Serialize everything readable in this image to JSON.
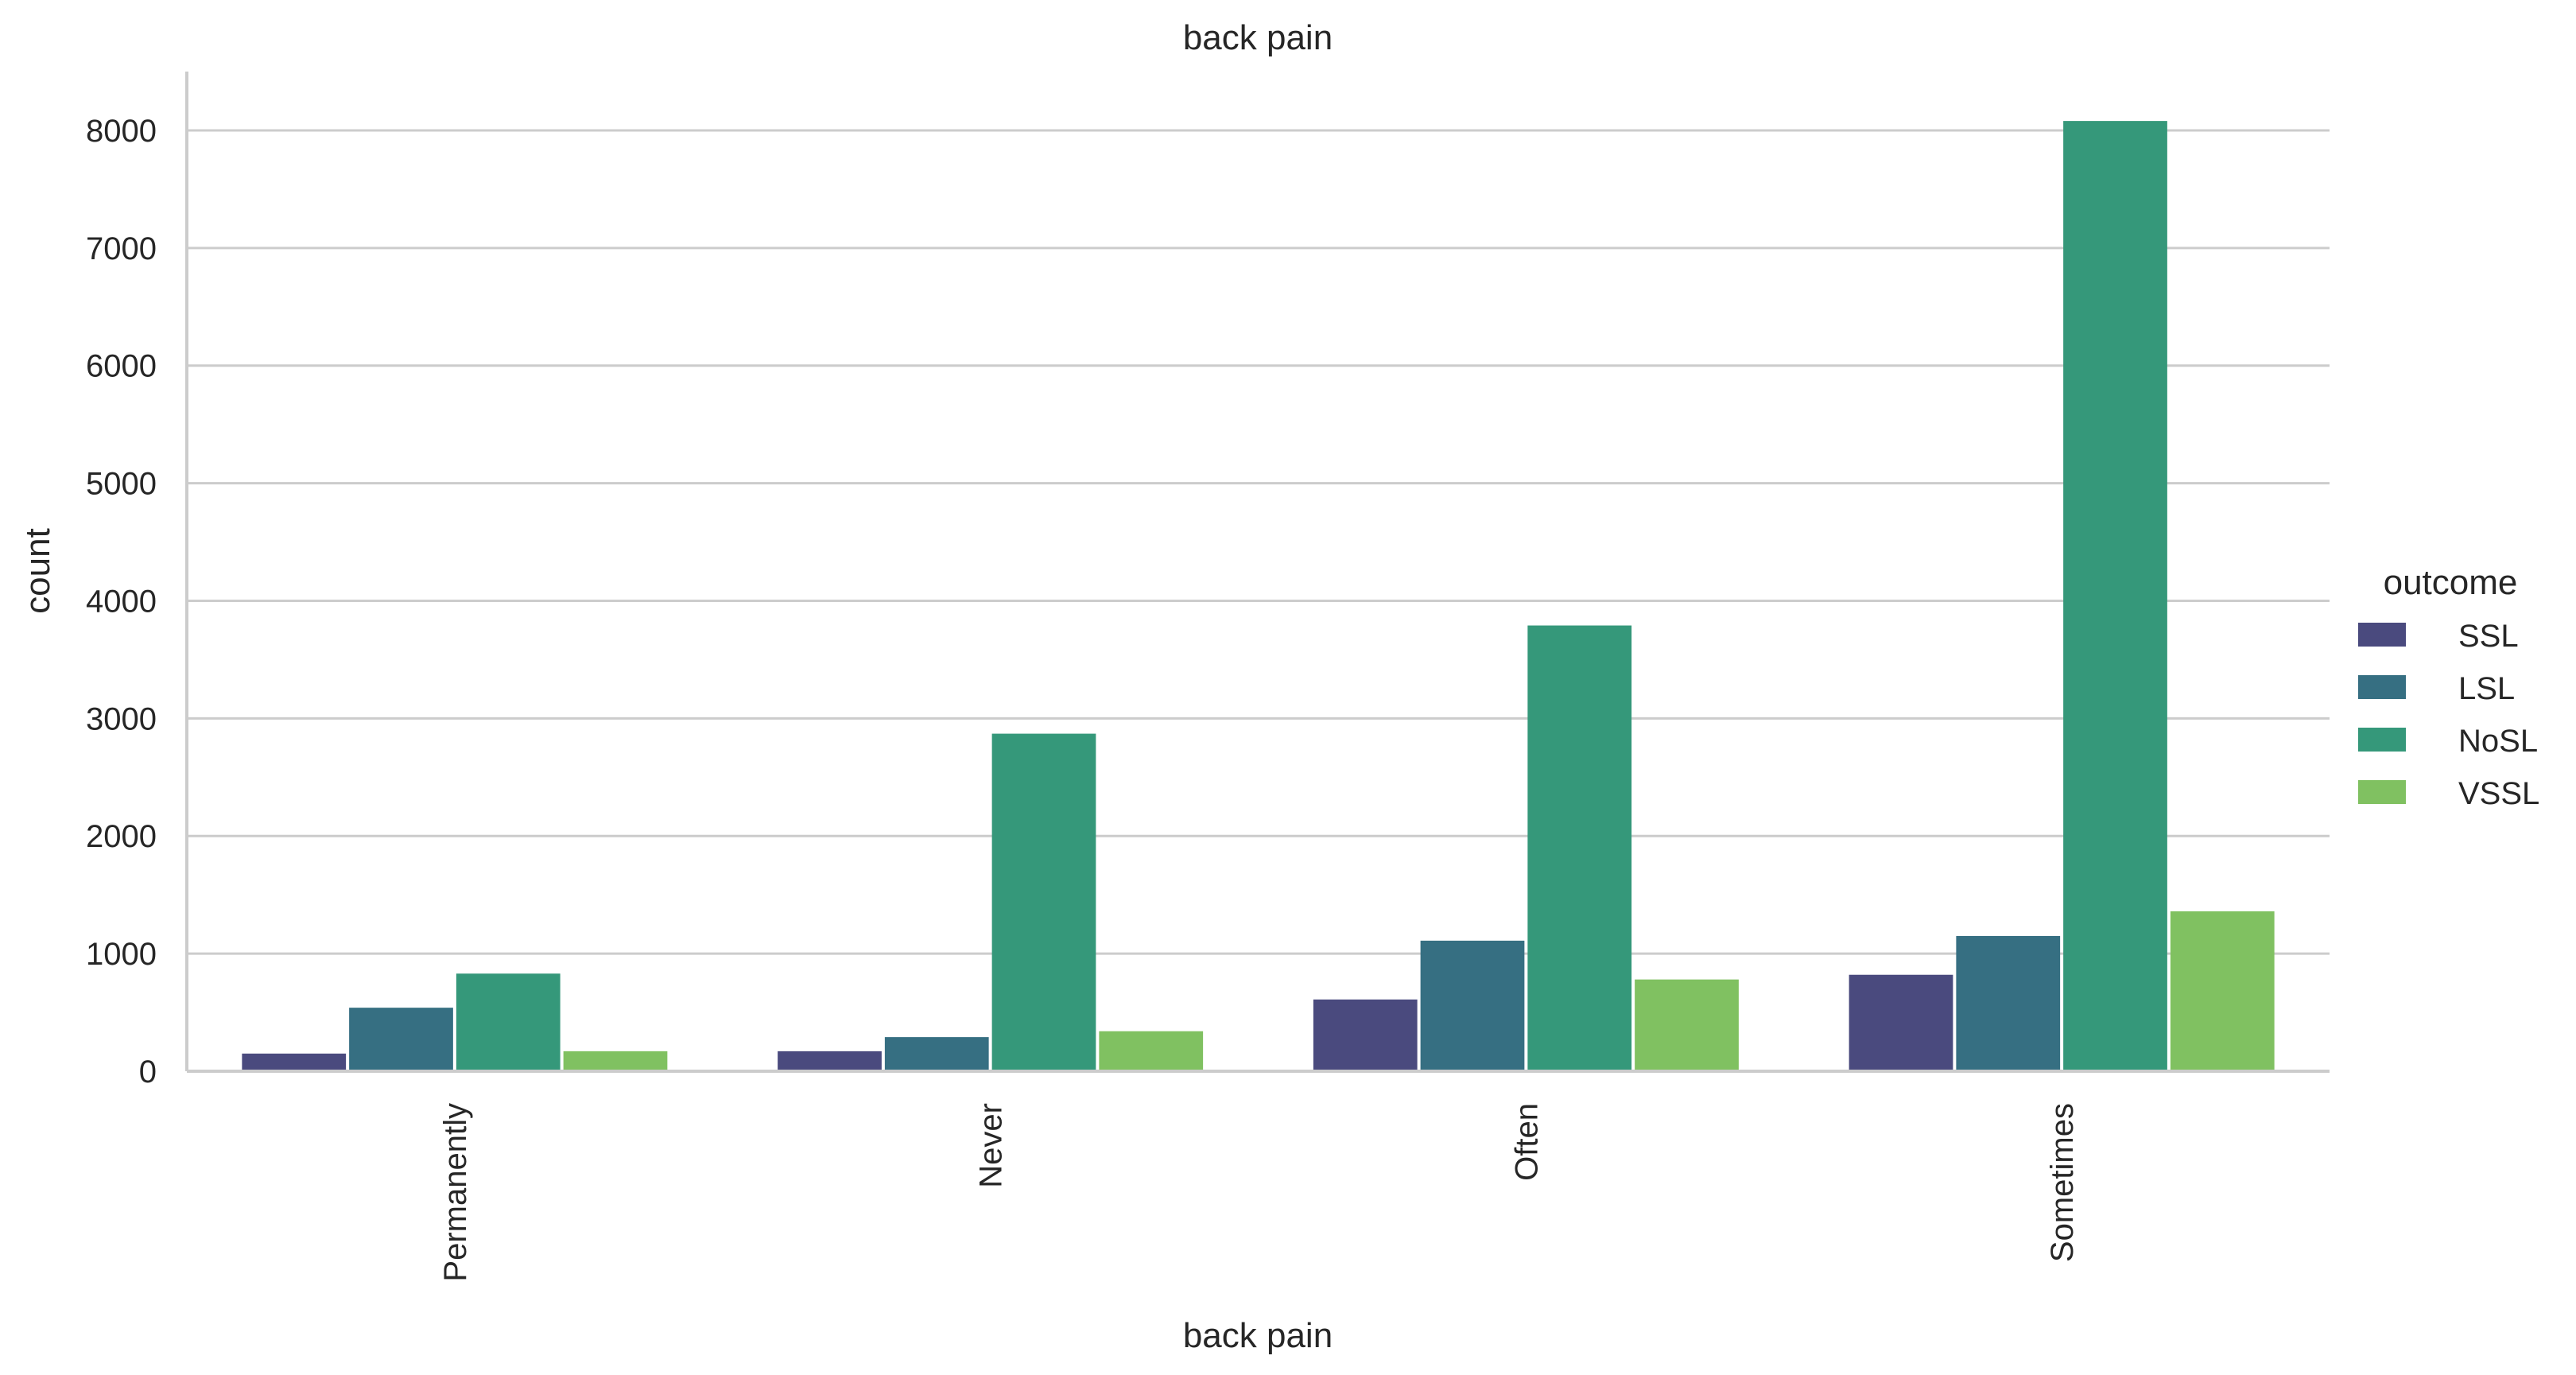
{
  "chart_data": {
    "type": "bar",
    "title": "back pain",
    "xlabel": "back pain",
    "ylabel": "count",
    "categories": [
      "Permanently",
      "Never",
      "Often",
      "Sometimes"
    ],
    "series": [
      {
        "name": "SSL",
        "color": "#4a4a7e",
        "values": [
          150,
          170,
          610,
          820
        ]
      },
      {
        "name": "LSL",
        "color": "#366f82",
        "values": [
          540,
          290,
          1110,
          1150
        ]
      },
      {
        "name": "NoSL",
        "color": "#35987a",
        "values": [
          830,
          2870,
          3790,
          8080
        ]
      },
      {
        "name": "VSSL",
        "color": "#80c161",
        "values": [
          170,
          340,
          780,
          1360
        ]
      }
    ],
    "ylim": [
      0,
      8500
    ],
    "yticks": [
      0,
      1000,
      2000,
      3000,
      4000,
      5000,
      6000,
      7000,
      8000
    ],
    "grid": true,
    "legend": {
      "title": "outcome",
      "placement": "right"
    }
  }
}
